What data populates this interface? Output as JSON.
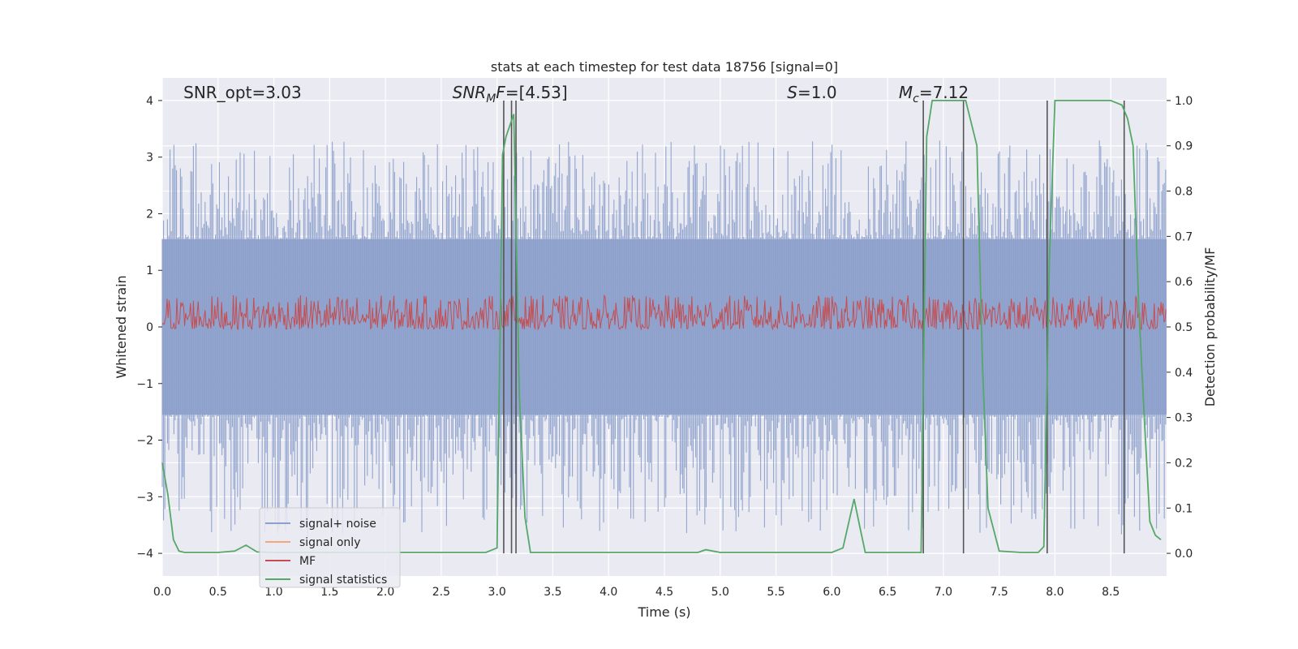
{
  "chart_data": {
    "type": "line",
    "title": "stats at each timestep for test data 18756 [signal=0]",
    "xlabel": "Time (s)",
    "ylabel_left": "Whitened strain",
    "ylabel_right": "Detection probability/MF",
    "xlim": [
      0,
      9
    ],
    "ylim_left": [
      -4.4,
      4.4
    ],
    "ylim_right": [
      -0.05,
      1.05
    ],
    "xticks": [
      0.0,
      0.5,
      1.0,
      1.5,
      2.0,
      2.5,
      3.0,
      3.5,
      4.0,
      4.5,
      5.0,
      5.5,
      6.0,
      6.5,
      7.0,
      7.5,
      8.0,
      8.5
    ],
    "xtick_labels": [
      "0.0",
      "0.5",
      "1.0",
      "1.5",
      "2.0",
      "2.5",
      "3.0",
      "3.5",
      "4.0",
      "4.5",
      "5.0",
      "5.5",
      "6.0",
      "6.5",
      "7.0",
      "7.5",
      "8.0",
      "8.5"
    ],
    "yticks_left": [
      -4,
      -3,
      -2,
      -1,
      0,
      1,
      2,
      3,
      4
    ],
    "ytick_labels_left": [
      "−4",
      "−3",
      "−2",
      "−1",
      "0",
      "1",
      "2",
      "3",
      "4"
    ],
    "yticks_right": [
      0.0,
      0.1,
      0.2,
      0.3,
      0.4,
      0.5,
      0.6,
      0.7,
      0.8,
      0.9,
      1.0
    ],
    "ytick_labels_right": [
      "0.0",
      "0.1",
      "0.2",
      "0.3",
      "0.4",
      "0.5",
      "0.6",
      "0.7",
      "0.8",
      "0.9",
      "1.0"
    ],
    "grid": true,
    "legend_location": "lower-left",
    "annotations": [
      {
        "id": "snr-opt",
        "text": "SNR_opt=3.03",
        "x": 0.19
      },
      {
        "id": "snr-mf",
        "prefix": "SNR",
        "sub": "M",
        "suffix": "F=[4.53]",
        "x": 2.6
      },
      {
        "id": "s-value",
        "prefix": "S",
        "suffix": "=1.0",
        "x": 5.6
      },
      {
        "id": "mc-value",
        "prefix": "M",
        "sub": "c",
        "suffix": "=7.12",
        "x": 6.6
      }
    ],
    "series": [
      {
        "name": "signal+ noise",
        "color": "#8da0cb",
        "axis": "left",
        "style": "noise",
        "amplitude_range": [
          -3.7,
          3.3
        ]
      },
      {
        "name": "signal only",
        "color": "#f4a582",
        "axis": "left",
        "values": []
      },
      {
        "name": "MF",
        "color": "#c44e52",
        "axis": "right",
        "style": "noise",
        "range": [
          0.5,
          0.56
        ]
      },
      {
        "name": "signal statistics",
        "color": "#55a868",
        "axis": "right",
        "x": [
          0.0,
          0.05,
          0.1,
          0.15,
          0.2,
          0.3,
          0.5,
          0.65,
          0.75,
          0.85,
          1.0,
          1.5,
          2.0,
          2.5,
          2.9,
          3.0,
          3.05,
          3.08,
          3.15,
          3.2,
          3.25,
          3.3,
          3.5,
          4.0,
          4.5,
          4.8,
          4.87,
          5.0,
          5.5,
          6.0,
          6.1,
          6.2,
          6.25,
          6.3,
          6.5,
          6.8,
          6.85,
          6.9,
          6.95,
          7.0,
          7.1,
          7.2,
          7.3,
          7.35,
          7.4,
          7.5,
          7.7,
          7.85,
          7.9,
          7.95,
          8.0,
          8.05,
          8.5,
          8.6,
          8.65,
          8.7,
          8.75,
          8.8,
          8.85,
          8.9,
          8.95
        ],
        "y": [
          0.2,
          0.13,
          0.03,
          0.005,
          0.002,
          0.002,
          0.002,
          0.005,
          0.018,
          0.003,
          0.002,
          0.002,
          0.002,
          0.002,
          0.002,
          0.012,
          0.88,
          0.92,
          0.97,
          0.35,
          0.08,
          0.002,
          0.002,
          0.002,
          0.002,
          0.002,
          0.008,
          0.002,
          0.002,
          0.002,
          0.012,
          0.12,
          0.06,
          0.002,
          0.002,
          0.002,
          0.92,
          1.0,
          1.0,
          1.0,
          1.0,
          1.0,
          0.9,
          0.42,
          0.1,
          0.005,
          0.002,
          0.002,
          0.015,
          0.65,
          1.0,
          1.0,
          1.0,
          0.99,
          0.96,
          0.9,
          0.55,
          0.3,
          0.07,
          0.04,
          0.03
        ]
      }
    ],
    "vertical_lines": [
      3.06,
      3.13,
      3.17,
      6.82,
      7.18,
      7.93,
      8.62
    ]
  }
}
